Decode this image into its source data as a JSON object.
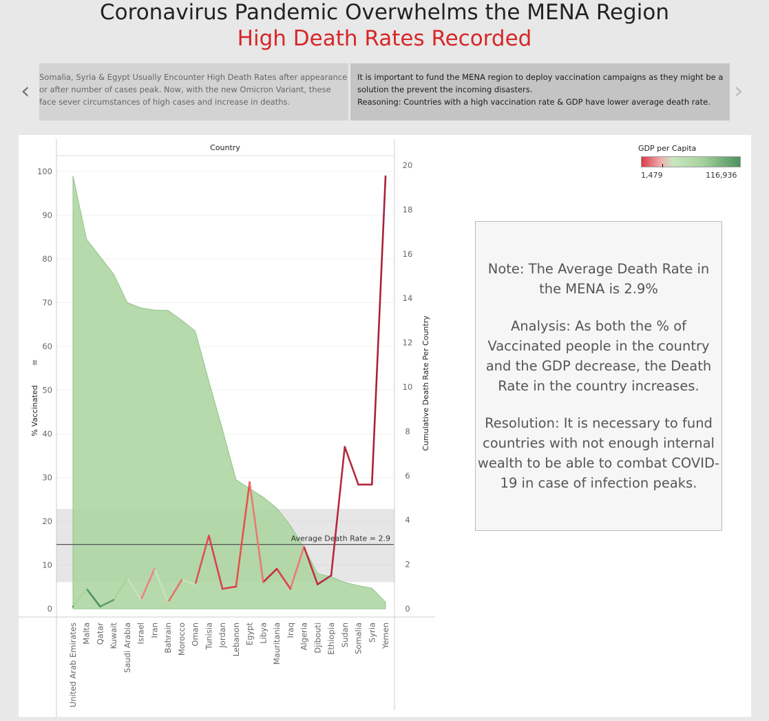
{
  "header": {
    "title": "Coronavirus Pandemic Overwhelms the MENA Region",
    "subtitle": "High Death Rates Recorded"
  },
  "story": {
    "prev_icon": "chevron-left-icon",
    "next_icon": "chevron-right-icon",
    "left_lines": [
      "Somalia, Syria & Egypt Usually Encounter High Death Rates after appearance",
      "or after number of cases peak. Now, with the new Omicron Variant, these",
      "face sever circumstances of high cases and increase in deaths."
    ],
    "right_lines": [
      "It is important to fund the MENA region to deploy vaccination campaigns as they might be a",
      "solution the prevent the incoming disasters.",
      "Reasoning: Countries with a high vaccination rate & GDP have lower average death rate."
    ]
  },
  "legend": {
    "title": "GDP per Capita",
    "min_label": "1,479",
    "max_label": "116,936",
    "colors": [
      "#d93d4a",
      "#f0b0b0",
      "#c8e6c0",
      "#a9d49e",
      "#4f9161"
    ]
  },
  "note": {
    "paragraphs": [
      "Note: The Average Death Rate in the MENA is 2.9%",
      "Analysis: As both the % of Vaccinated people in the country and the GDP decrease, the Death Rate in the country increases.",
      "Resolution: It is necessary to fund countries with not enough internal wealth to be able to combat COVID-19 in case of infection peaks."
    ]
  },
  "chart_data": {
    "type": "area",
    "title": "",
    "x_axis_title": "Country",
    "y_left_label": "% Vaccinated",
    "y_right_label": "Cumulative Death Rate Per Country",
    "y_left_ticks": [
      0,
      10,
      20,
      30,
      40,
      50,
      60,
      70,
      80,
      90,
      100
    ],
    "y_right_ticks": [
      0,
      2,
      4,
      6,
      8,
      10,
      12,
      14,
      16,
      18,
      20
    ],
    "y_left_range": [
      0,
      100
    ],
    "y_right_range": [
      0,
      20
    ],
    "categories": [
      "United Arab Emirates",
      "Malta",
      "Qatar",
      "Kuwait",
      "Saudi Arabia",
      "Israel",
      "Iran",
      "Bahrain",
      "Morocco",
      "Oman",
      "Tunisia",
      "Jordan",
      "Lebanon",
      "Egypt",
      "Libya",
      "Mauritania",
      "Iraq",
      "Algeria",
      "Djibouti",
      "Ethiopia",
      "Sudan",
      "Somalia",
      "Syria",
      "Yemen"
    ],
    "series": [
      {
        "name": "% Vaccinated",
        "axis": "left",
        "type": "area",
        "color": "#a9d49e",
        "values": [
          99,
          84.5,
          80.5,
          76.5,
          70,
          68.8,
          68.3,
          68.2,
          66,
          63.5,
          52,
          41,
          29.5,
          27.5,
          25.5,
          23,
          19,
          14,
          8,
          7.3,
          6,
          5.3,
          4.7,
          1.5
        ]
      },
      {
        "name": "Cumulative Death Rate Per Country",
        "axis": "right",
        "type": "line",
        "values": [
          0.1,
          0.9,
          0.1,
          0.4,
          1.4,
          0.4,
          1.8,
          0.3,
          1.3,
          1.1,
          3.3,
          0.9,
          1.0,
          5.7,
          1.2,
          1.8,
          0.9,
          2.8,
          1.1,
          1.5,
          7.3,
          5.6,
          5.6,
          19.5
        ],
        "colors": [
          "#4f9161",
          "#a9d49e",
          "#4f9161",
          "#5f9e6c",
          "#a9d49e",
          "#c6e3bc",
          "#f08080",
          "#c6e3bc",
          "#e8706a",
          "#c6e3bc",
          "#e05050",
          "#d84050",
          "#d84050",
          "#e8504a",
          "#e87a70",
          "#c0303c",
          "#d84050",
          "#f07878",
          "#c0303c",
          "#b52840",
          "#b52840",
          "#b52840",
          "#b52840",
          "#a8203a"
        ]
      }
    ],
    "reference_line": {
      "label": "Average Death Rate = 2.9",
      "value": 2.9,
      "band": [
        1.2,
        4.5
      ]
    }
  }
}
